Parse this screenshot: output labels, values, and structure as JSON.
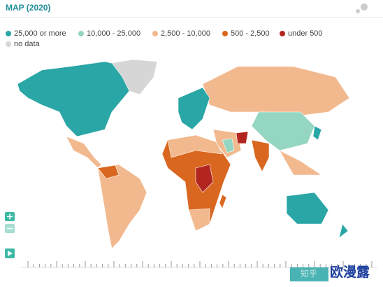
{
  "header": {
    "title": "MAP (2020)"
  },
  "legend": [
    {
      "label": "25,000 or more",
      "color": "#2aa6a6"
    },
    {
      "label": "10,000 - 25,000",
      "color": "#94d6c2"
    },
    {
      "label": "2,500 - 10,000",
      "color": "#f2b98e"
    },
    {
      "label": "500 - 2,500",
      "color": "#d9671f"
    },
    {
      "label": "under 500",
      "color": "#b32620"
    },
    {
      "label": "no data",
      "color": "#d6d6d6"
    }
  ],
  "watermark": {
    "site": "知乎",
    "user": "欧漫露"
  }
}
